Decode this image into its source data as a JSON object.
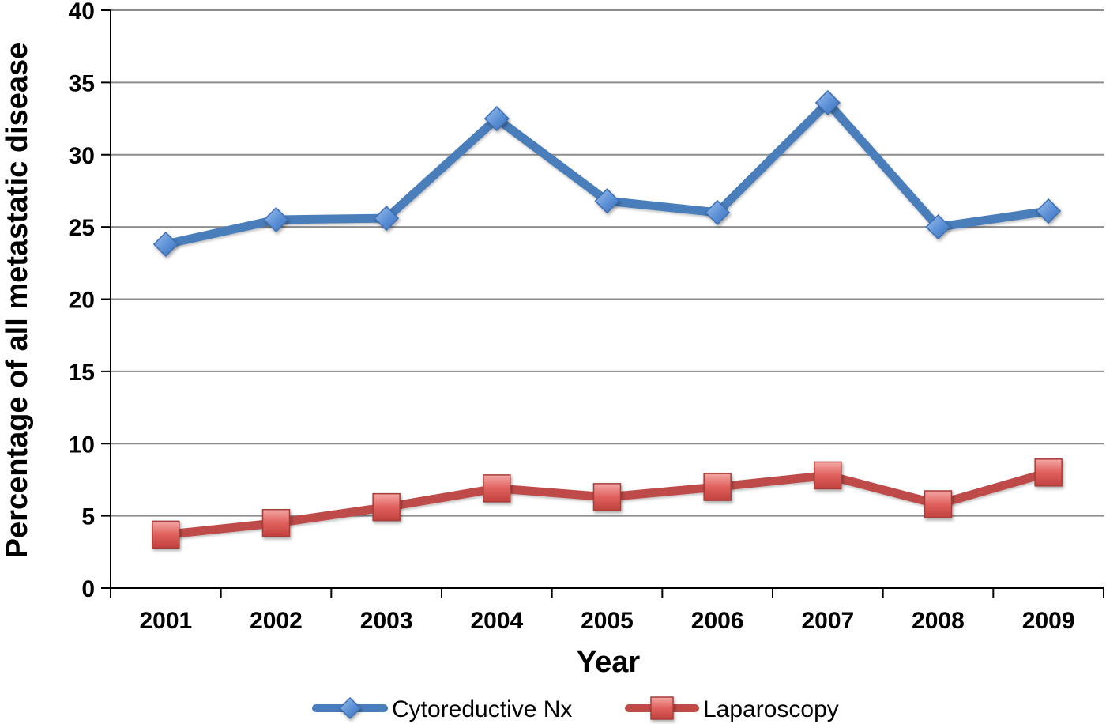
{
  "chart_data": {
    "type": "line",
    "title": "",
    "xlabel": "Year",
    "ylabel": "Percentage of all metastatic disease",
    "categories": [
      "2001",
      "2002",
      "2003",
      "2004",
      "2005",
      "2006",
      "2007",
      "2008",
      "2009"
    ],
    "ylim": [
      0,
      40
    ],
    "yticks": [
      0,
      5,
      10,
      15,
      20,
      25,
      30,
      35,
      40
    ],
    "grid": true,
    "legend_position": "bottom",
    "series": [
      {
        "name": "Cytoreductive Nx",
        "color": "#4A7EBB",
        "marker": "diamond",
        "values": [
          23.8,
          25.5,
          25.6,
          32.5,
          26.8,
          26.0,
          33.6,
          25.0,
          26.1
        ]
      },
      {
        "name": "Laparoscopy",
        "color": "#BE4B48",
        "marker": "square",
        "values": [
          3.7,
          4.5,
          5.6,
          6.9,
          6.3,
          7.0,
          7.8,
          5.8,
          8.0
        ]
      }
    ]
  }
}
